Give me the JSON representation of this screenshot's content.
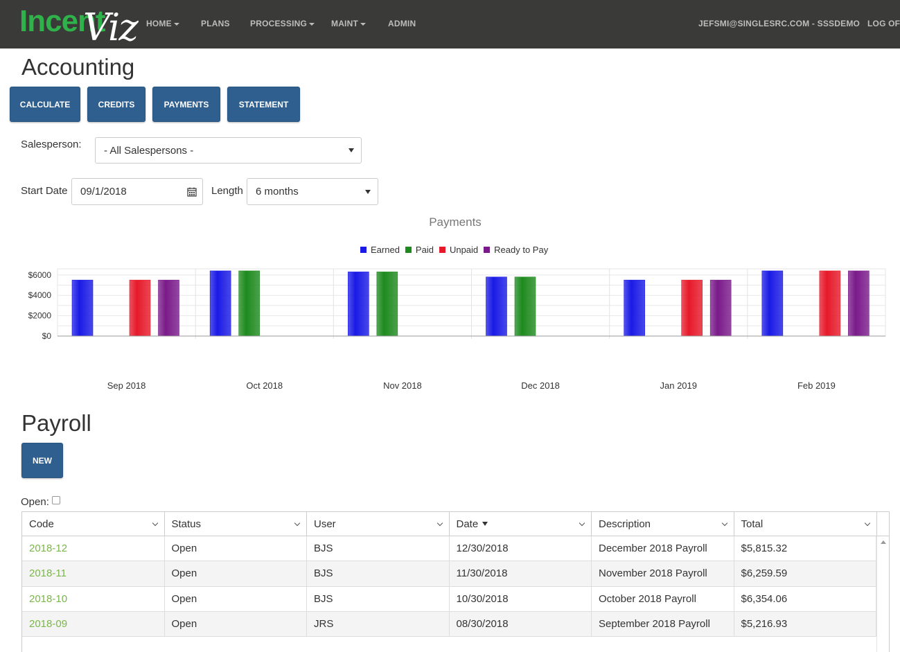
{
  "brand": {
    "part1": "Incent",
    "part2": "Viz"
  },
  "nav": {
    "items": [
      {
        "label": "HOME",
        "dropdown": true
      },
      {
        "label": "PLANS",
        "dropdown": false
      },
      {
        "label": "PROCESSING",
        "dropdown": true
      },
      {
        "label": "MAINT",
        "dropdown": true
      },
      {
        "label": "ADMIN",
        "dropdown": false
      }
    ],
    "user": "JEFSMI@SINGLESRC.COM - SSSDEMO",
    "logoff": "LOG OFF"
  },
  "accounting": {
    "title": "Accounting",
    "buttons": {
      "calculate": "CALCULATE",
      "credits": "CREDITS",
      "payments": "PAYMENTS",
      "statement": "STATEMENT"
    },
    "salesperson_label": "Salesperson:",
    "salesperson_value": "- All Salespersons -",
    "start_date_label": "Start Date",
    "start_date_value": "09/1/2018",
    "length_label": "Length",
    "length_value": "6 months"
  },
  "chart_data": {
    "type": "bar",
    "title": "Payments",
    "categories": [
      "Sep 2018",
      "Oct 2018",
      "Nov 2018",
      "Dec 2018",
      "Jan 2019",
      "Feb 2019"
    ],
    "series": [
      {
        "name": "Earned",
        "color": "#1a1ae6",
        "values": [
          5500,
          6400,
          6300,
          5800,
          5500,
          6400
        ]
      },
      {
        "name": "Paid",
        "color": "#1e8a1e",
        "values": [
          0,
          6400,
          6300,
          5800,
          0,
          0
        ]
      },
      {
        "name": "Unpaid",
        "color": "#e6192a",
        "values": [
          5500,
          0,
          0,
          0,
          5500,
          6400
        ]
      },
      {
        "name": "Ready to Pay",
        "color": "#7a1a8a",
        "values": [
          5500,
          0,
          0,
          0,
          5500,
          6400
        ]
      }
    ],
    "yticks": [
      "$0",
      "$2000",
      "$4000",
      "$6000"
    ],
    "ylim": [
      0,
      6600
    ],
    "legend_position": "top-center",
    "grid": true
  },
  "payroll": {
    "title": "Payroll",
    "new_label": "NEW",
    "open_label": "Open:",
    "columns": [
      "Code",
      "Status",
      "User",
      "Date",
      "Description",
      "Total"
    ],
    "rows": [
      {
        "code": "2018-12",
        "status": "Open",
        "user": "BJS",
        "date": "12/30/2018",
        "description": "December 2018 Payroll",
        "total": "$5,815.32"
      },
      {
        "code": "2018-11",
        "status": "Open",
        "user": "BJS",
        "date": "11/30/2018",
        "description": "November 2018 Payroll",
        "total": "$6,259.59"
      },
      {
        "code": "2018-10",
        "status": "Open",
        "user": "BJS",
        "date": "10/30/2018",
        "description": "October 2018 Payroll",
        "total": "$6,354.06"
      },
      {
        "code": "2018-09",
        "status": "Open",
        "user": "JRS",
        "date": "08/30/2018",
        "description": "September 2018 Payroll",
        "total": "$5,216.93"
      }
    ]
  }
}
